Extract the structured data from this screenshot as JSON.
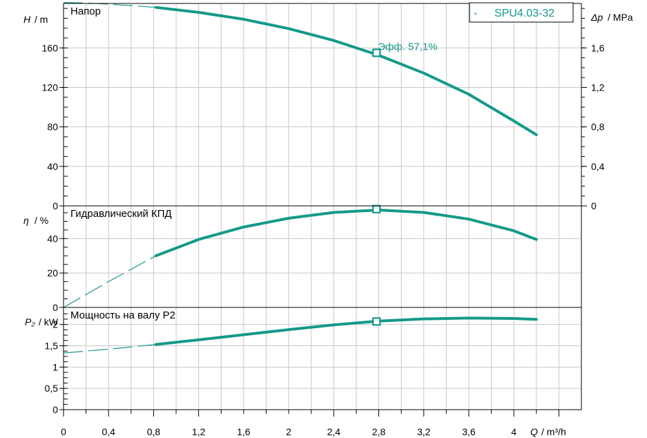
{
  "chart_data": {
    "type": "line",
    "legend": {
      "dash": "-",
      "label": "SPU4.03-32",
      "placement": "top-right"
    },
    "colors": {
      "curve": "#13998a",
      "grid": "#c8c8c8",
      "axis": "#000000"
    },
    "x_axis": {
      "label_symbol": "Q",
      "label_unit": "/ m³/h",
      "range": [
        0,
        4.6
      ],
      "ticks": [
        {
          "v": 0,
          "label": "0"
        },
        {
          "v": 0.4,
          "label": "0,4"
        },
        {
          "v": 0.8,
          "label": "0,8"
        },
        {
          "v": 1.2,
          "label": "1,2"
        },
        {
          "v": 1.6,
          "label": "1,6"
        },
        {
          "v": 2.0,
          "label": "2"
        },
        {
          "v": 2.4,
          "label": "2,4"
        },
        {
          "v": 2.8,
          "label": "2,8"
        },
        {
          "v": 3.2,
          "label": "3,2"
        },
        {
          "v": 3.6,
          "label": "3,6"
        },
        {
          "v": 4.0,
          "label": "4"
        }
      ]
    },
    "operating_point": {
      "q": 2.78
    },
    "panels": [
      {
        "id": "head",
        "title": "Напор",
        "y_label_symbol": "H",
        "y_label_unit": "/ m",
        "ylim": [
          0,
          205
        ],
        "y_ticks": [
          {
            "v": 0,
            "label": "0"
          },
          {
            "v": 40,
            "label": "40"
          },
          {
            "v": 80,
            "label": "80"
          },
          {
            "v": 120,
            "label": "120"
          },
          {
            "v": 160,
            "label": "160"
          }
        ],
        "right_axis": {
          "label_symbol": "Δp",
          "label_unit": "/ MPa",
          "ticks": [
            {
              "v": 0,
              "label": "0"
            },
            {
              "v": 0.4,
              "label": "0,4"
            },
            {
              "v": 0.8,
              "label": "0,8"
            },
            {
              "v": 1.2,
              "label": "1,2"
            },
            {
              "v": 1.6,
              "label": "1,6"
            }
          ],
          "scale": 0.01
        },
        "dashed": {
          "x": [
            0,
            0.2,
            0.4,
            0.6,
            0.82
          ],
          "y": [
            206,
            205.5,
            204.3,
            202.8,
            201
          ]
        },
        "solid": {
          "x": [
            0.82,
            1.2,
            1.6,
            2.0,
            2.4,
            2.8,
            3.2,
            3.6,
            4.0,
            4.2
          ],
          "y": [
            201,
            196,
            189,
            179.5,
            167.5,
            152.5,
            134.5,
            113,
            86,
            72
          ]
        },
        "marker": {
          "x": 2.78,
          "y": 155
        },
        "annotation": "Эфф.  57,1%"
      },
      {
        "id": "eff",
        "title": "Гидравлический КПД",
        "y_label_symbol": "η",
        "y_label_unit": "/ %",
        "ylim": [
          0,
          59
        ],
        "y_ticks": [
          {
            "v": 0,
            "label": "0"
          },
          {
            "v": 20,
            "label": "20"
          },
          {
            "v": 40,
            "label": "40"
          }
        ],
        "dashed": {
          "x": [
            0,
            0.4,
            0.82
          ],
          "y": [
            0,
            15,
            30
          ]
        },
        "solid": {
          "x": [
            0.82,
            1.2,
            1.6,
            2.0,
            2.4,
            2.8,
            3.2,
            3.6,
            4.0,
            4.2
          ],
          "y": [
            30,
            39.5,
            46.7,
            51.8,
            55.2,
            56.6,
            55.2,
            51.3,
            44.5,
            39.5
          ]
        },
        "marker": {
          "x": 2.78,
          "y": 57.1
        }
      },
      {
        "id": "power",
        "title": "Мощность на валу P2",
        "y_label_symbol": "P₂",
        "y_label_unit": "/ kW",
        "ylim": [
          0,
          2.4
        ],
        "y_ticks": [
          {
            "v": 0,
            "label": "0"
          },
          {
            "v": 0.5,
            "label": "0,5"
          },
          {
            "v": 1,
            "label": "1"
          },
          {
            "v": 1.5,
            "label": "1,5"
          },
          {
            "v": 2,
            "label": "2"
          }
        ],
        "dashed": {
          "x": [
            0,
            0.4,
            0.82
          ],
          "y": [
            1.33,
            1.42,
            1.53
          ]
        },
        "solid": {
          "x": [
            0.82,
            1.2,
            1.6,
            2.0,
            2.4,
            2.8,
            3.2,
            3.6,
            4.0,
            4.2
          ],
          "y": [
            1.53,
            1.64,
            1.76,
            1.88,
            1.99,
            2.08,
            2.13,
            2.15,
            2.14,
            2.12
          ]
        },
        "marker": {
          "x": 2.78,
          "y": 2.07
        }
      }
    ]
  }
}
